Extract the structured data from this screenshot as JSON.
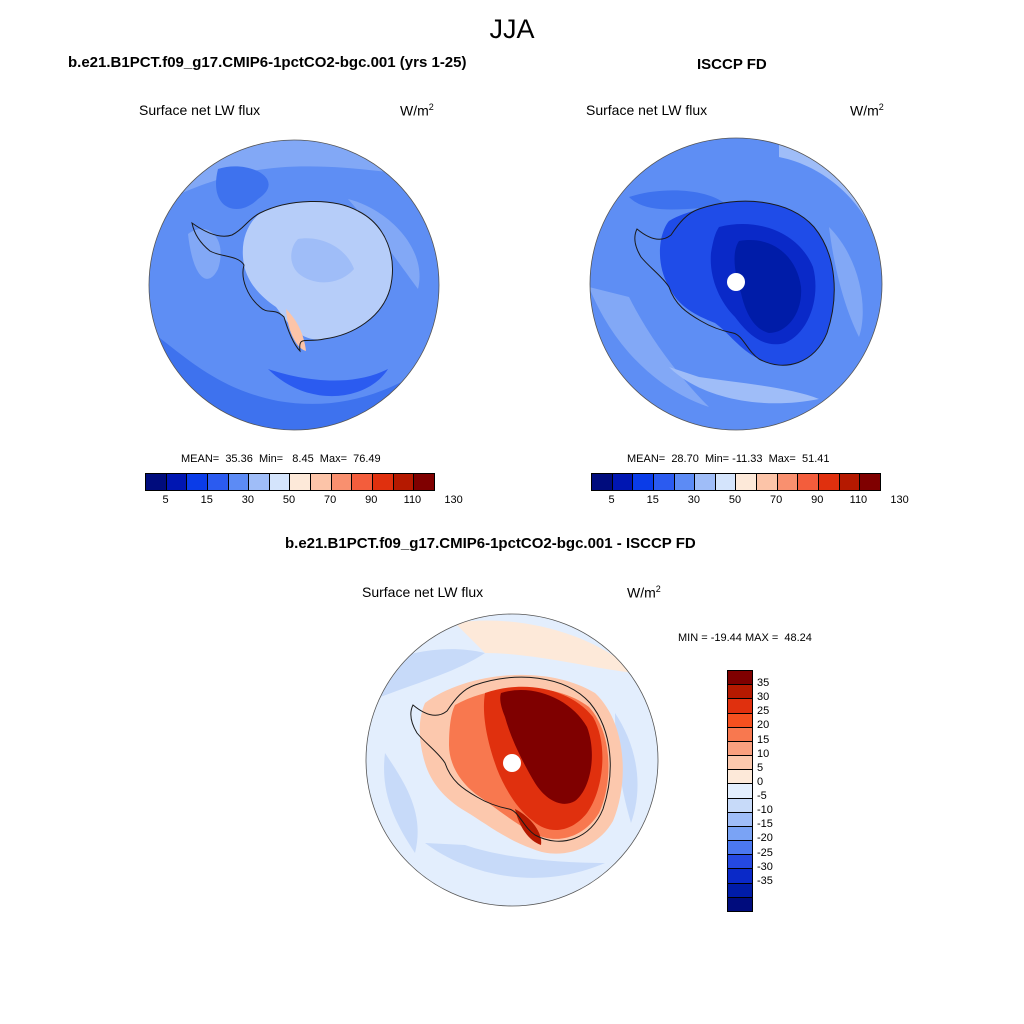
{
  "figure": {
    "season": "JJA",
    "panels": [
      {
        "title": "b.e21.B1PCT.f09_g17.CMIP6-1pctCO2-bgc.001 (yrs 1-25)",
        "variable": "Surface net LW flux",
        "units_base": "W/m",
        "units_exp": "2",
        "stats": "MEAN=  35.36  Min=   8.45  Max=  76.49"
      },
      {
        "title": "ISCCP FD",
        "variable": "Surface net LW flux",
        "units_base": "W/m",
        "units_exp": "2",
        "stats": "MEAN=  28.70  Min= -11.33  Max=  51.41"
      },
      {
        "title": "b.e21.B1PCT.f09_g17.CMIP6-1pctCO2-bgc.001 - ISCCP FD",
        "variable": "Surface net LW flux",
        "units_base": "W/m",
        "units_exp": "2",
        "stats": "MIN = -19.44 MAX =  48.24"
      }
    ],
    "abs_colorbar": {
      "labels": [
        "5",
        "15",
        "30",
        "50",
        "70",
        "90",
        "110",
        "130"
      ],
      "colors": [
        "#000c7d",
        "#0016b2",
        "#0a3ce8",
        "#2b5bf0",
        "#5c8bf5",
        "#9fbdf8",
        "#d4e4fc",
        "#fde9d9",
        "#fcc4a8",
        "#f9906f",
        "#f35d3c",
        "#e0300e",
        "#b51900",
        "#7f0000"
      ]
    },
    "diff_colorbar": {
      "labels": [
        "35",
        "30",
        "25",
        "20",
        "15",
        "10",
        "5",
        "0",
        "-5",
        "-10",
        "-15",
        "-20",
        "-25",
        "-30",
        "-35"
      ],
      "colors": [
        "#7f0000",
        "#b51900",
        "#e0300e",
        "#f5501f",
        "#f8784f",
        "#faa07f",
        "#fcc8ad",
        "#fde9d9",
        "#e3eefd",
        "#c7daf9",
        "#9fbdf8",
        "#7aa3f5",
        "#4b78f0",
        "#2549e2",
        "#0a29c8",
        "#001ca8",
        "#000c7d"
      ]
    }
  }
}
